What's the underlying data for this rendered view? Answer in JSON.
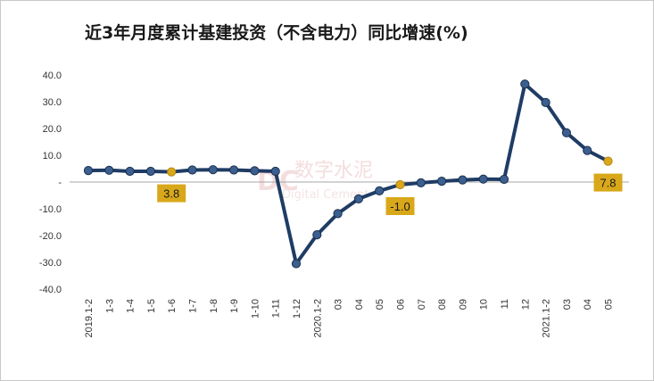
{
  "title": "近3年月度累计基建投资（不含电力）同比增速(%)",
  "watermark": {
    "cn": "数字水泥",
    "en": "Digital Cement"
  },
  "colors": {
    "line": "#1f3c64",
    "marker": "#3b5f8f",
    "highlight": "#d9a81a",
    "label_bg": "#d9a81a",
    "zero_line": "#a6a6a6"
  },
  "chart_data": {
    "type": "line",
    "title": "近3年月度累计基建投资（不含电力）同比增速(%)",
    "xlabel": "",
    "ylabel": "",
    "ylim": [
      -40,
      40
    ],
    "yticks": [
      "40.0",
      "30.0",
      "20.0",
      "10.0",
      "-",
      "-10.0",
      "-20.0",
      "-30.0",
      "-40.0"
    ],
    "categories": [
      "2019.1-2",
      "1-3",
      "1-4",
      "1-5",
      "1-6",
      "1-7",
      "1-8",
      "1-9",
      "1-10",
      "1-11",
      "1-12",
      "2020.1-2",
      "03",
      "04",
      "05",
      "06",
      "07",
      "08",
      "09",
      "10",
      "11",
      "12",
      "2021.1-2",
      "03",
      "04",
      "05"
    ],
    "series": [
      {
        "name": "",
        "values": [
          4.3,
          4.4,
          4.0,
          4.0,
          3.8,
          4.5,
          4.6,
          4.5,
          4.2,
          4.0,
          -30.5,
          -19.7,
          -11.8,
          -6.3,
          -3.3,
          -1.0,
          -0.3,
          0.3,
          0.8,
          1.1,
          1.0,
          36.6,
          29.7,
          18.4,
          11.8,
          7.8
        ]
      }
    ],
    "highlight_indices": [
      4,
      15,
      25
    ],
    "data_labels": [
      {
        "index": 4,
        "text": "3.8"
      },
      {
        "index": 15,
        "text": "-1.0"
      },
      {
        "index": 25,
        "text": "7.8"
      }
    ],
    "grid": false,
    "legend": "none"
  }
}
